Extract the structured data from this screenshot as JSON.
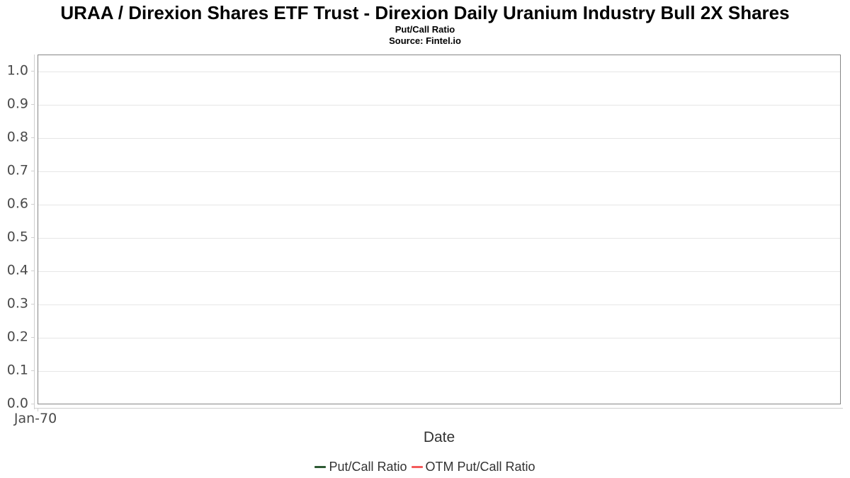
{
  "header": {
    "title": "URAA / Direxion Shares ETF Trust - Direxion Daily Uranium Industry Bull 2X Shares",
    "subtitle": "Put/Call Ratio",
    "source": "Source: Fintel.io"
  },
  "chart_data": {
    "type": "line",
    "title": "URAA / Direxion Shares ETF Trust - Direxion Daily Uranium Industry Bull 2X Shares",
    "subtitle": "Put/Call Ratio",
    "source": "Source: Fintel.io",
    "xlabel": "Date",
    "ylabel": "",
    "ylim": [
      0.0,
      1.0
    ],
    "y_tick_step": 0.1,
    "y_ticks": [
      "1.0",
      "0.9",
      "0.8",
      "0.7",
      "0.6",
      "0.5",
      "0.4",
      "0.3",
      "0.2",
      "0.1",
      "0.0"
    ],
    "x_ticks": [
      "Jan-70"
    ],
    "grid": true,
    "legend_position": "bottom-center",
    "series": [
      {
        "name": "Put/Call Ratio",
        "color": "#2d5a33",
        "x": [],
        "values": []
      },
      {
        "name": "OTM Put/Call Ratio",
        "color": "#f45b5b",
        "x": [],
        "values": []
      }
    ]
  }
}
